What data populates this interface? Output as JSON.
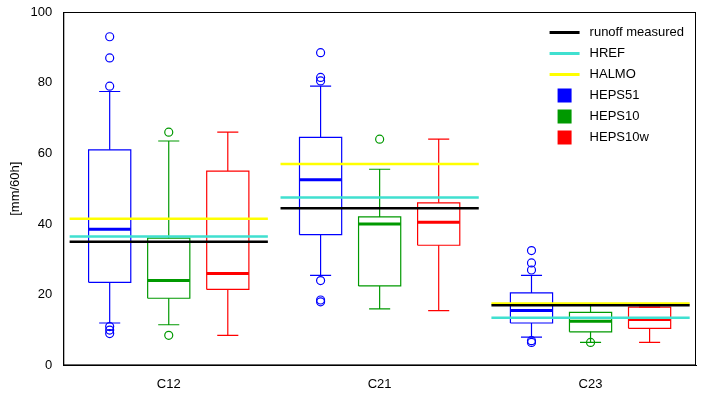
{
  "chart_data": {
    "type": "boxplot",
    "y_label": "[mm/60h]",
    "categories": [
      "C12",
      "C21",
      "C23"
    ],
    "ylim": [
      0,
      100
    ],
    "yticks": [
      0,
      20,
      40,
      60,
      80,
      100
    ],
    "grid": false,
    "legend": "top-right",
    "series": [
      {
        "name": "runoff measured",
        "color": "#000000",
        "type": "line",
        "values": [
          35,
          44.5,
          17
        ]
      },
      {
        "name": "HREF",
        "color": "#40e0d0",
        "type": "line",
        "values": [
          36.5,
          47.5,
          13.5
        ]
      },
      {
        "name": "HALMO",
        "color": "#ffff00",
        "type": "line",
        "values": [
          41.5,
          57,
          17.5
        ]
      },
      {
        "name": "HEPS51",
        "color": "#0000ff",
        "type": "box",
        "values": [
          {
            "whisker_low": 12,
            "q1": 23.5,
            "median": 38.5,
            "q3": 61,
            "whisker_high": 77.5,
            "outliers": [
              93,
              87,
              79,
              11,
              10,
              9
            ]
          },
          {
            "whisker_low": 25.5,
            "q1": 37,
            "median": 52.5,
            "q3": 64.5,
            "whisker_high": 79,
            "outliers": [
              88.5,
              81.5,
              80.5,
              24,
              18.5,
              18
            ]
          },
          {
            "whisker_low": 8,
            "q1": 12,
            "median": 15.5,
            "q3": 20.5,
            "whisker_high": 25.5,
            "outliers": [
              32.5,
              29,
              27,
              7,
              6.5
            ]
          }
        ]
      },
      {
        "name": "HEPS10",
        "color": "#009900",
        "type": "box",
        "values": [
          {
            "whisker_low": 11.5,
            "q1": 19,
            "median": 24,
            "q3": 36,
            "whisker_high": 63.5,
            "outliers": [
              66,
              8.5
            ]
          },
          {
            "whisker_low": 16,
            "q1": 22.5,
            "median": 40,
            "q3": 42,
            "whisker_high": 55.5,
            "outliers": [
              64
            ]
          },
          {
            "whisker_low": 6.5,
            "q1": 9.5,
            "median": 12.5,
            "q3": 15,
            "whisker_high": 17.5,
            "outliers": [
              6.5
            ]
          }
        ]
      },
      {
        "name": "HEPS10w",
        "color": "#ff0000",
        "type": "box",
        "values": [
          {
            "whisker_low": 8.5,
            "q1": 21.5,
            "median": 26,
            "q3": 55,
            "whisker_high": 66,
            "outliers": []
          },
          {
            "whisker_low": 15.5,
            "q1": 34,
            "median": 40.5,
            "q3": 46,
            "whisker_high": 64,
            "outliers": []
          },
          {
            "whisker_low": 6.5,
            "q1": 10.5,
            "median": 13,
            "q3": 16.5,
            "whisker_high": 16.5,
            "outliers": []
          }
        ]
      }
    ]
  }
}
